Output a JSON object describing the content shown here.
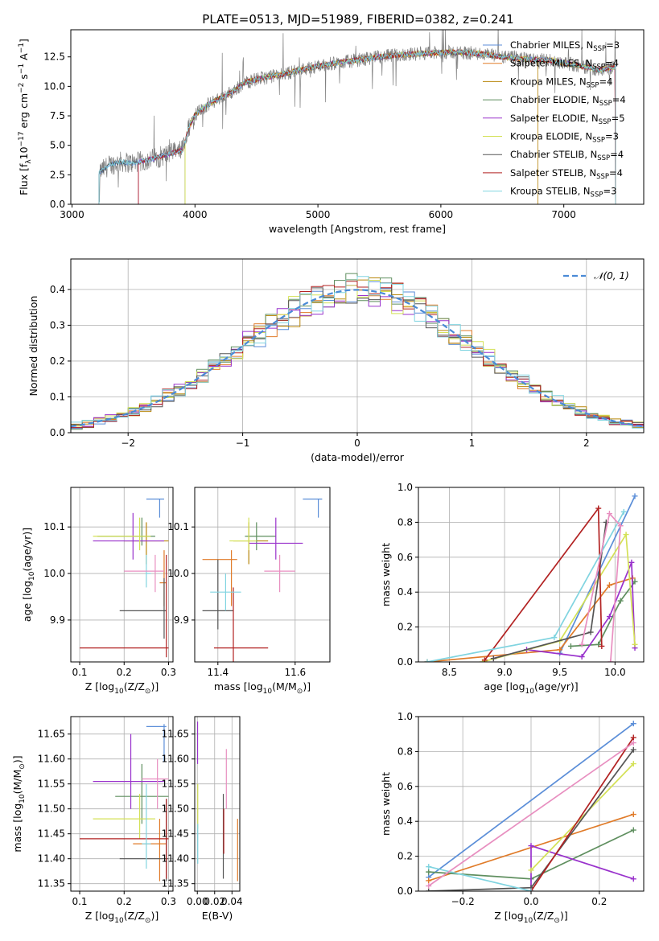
{
  "page_title": "PLATE=0513, MJD=51989, FIBERID=0382, z=0.241",
  "models": [
    {
      "name": "Chabrier MILES, N",
      "nssp": "=3",
      "color": "#5b8ed8"
    },
    {
      "name": "Salpeter MILES, N",
      "nssp": "=4",
      "color": "#e07b29"
    },
    {
      "name": "Kroupa MILES, N",
      "nssp": "=4",
      "color": "#b8860b"
    },
    {
      "name": "Chabrier ELODIE, N",
      "nssp": "=4",
      "color": "#5f8f5f"
    },
    {
      "name": "Salpeter ELODIE, N",
      "nssp": "=5",
      "color": "#9932cc"
    },
    {
      "name": "Kroupa ELODIE, N",
      "nssp": "=3",
      "color": "#d4e157"
    },
    {
      "name": "Chabrier STELIB, N",
      "nssp": "=4",
      "color": "#555555"
    },
    {
      "name": "Salpeter STELIB, N",
      "nssp": "=4",
      "color": "#b22222"
    },
    {
      "name": "Kroupa STELIB, N",
      "nssp": "=3",
      "color": "#80d4e0"
    }
  ],
  "chart_data": [
    {
      "id": "spectrum",
      "type": "line",
      "title": "PLATE=0513, MJD=51989, FIBERID=0382, z=0.241",
      "xlabel": "wavelength [Angstrom, rest frame]",
      "ylabel": "Flux [f",
      "ylabel_parts": [
        "Flux [f",
        "λ",
        "10",
        "−17",
        " erg cm",
        "−2",
        " s",
        "−1",
        " A",
        "−1",
        "]"
      ],
      "xlim": [
        2990,
        7650
      ],
      "ylim": [
        0,
        14.8
      ],
      "xticks": [
        3000,
        4000,
        5000,
        6000,
        7000
      ],
      "xtick_labels": [
        "3000",
        "4000",
        "5000",
        "6000",
        "7000"
      ],
      "yticks": [
        0.0,
        2.5,
        5.0,
        7.5,
        10.0,
        12.5
      ],
      "ytick_labels": [
        "0.0",
        "2.5",
        "5.0",
        "7.5",
        "10.0",
        "12.5"
      ],
      "legend": "upper-right",
      "nssp_subscript": "SSP",
      "continuum": {
        "x": [
          3220,
          3300,
          3400,
          3500,
          3600,
          3700,
          3800,
          3900,
          3950,
          4000,
          4100,
          4200,
          4300,
          4400,
          4500,
          4700,
          4900,
          5100,
          5300,
          5500,
          5700,
          5900,
          6100,
          6300,
          6500,
          6700,
          6900,
          7100,
          7300,
          7400
        ],
        "y": [
          2.7,
          3.3,
          3.6,
          3.5,
          3.7,
          4.0,
          4.3,
          4.6,
          6.5,
          7.6,
          8.4,
          9.0,
          9.5,
          10.3,
          10.6,
          11.0,
          11.5,
          11.9,
          12.2,
          12.5,
          12.7,
          12.8,
          12.9,
          12.8,
          12.5,
          12.3,
          12.2,
          11.8,
          11.4,
          11.6
        ]
      }
    },
    {
      "id": "residual-histogram",
      "type": "bar",
      "xlabel": "(data-model)/error",
      "ylabel": "Normed distribution",
      "xlim": [
        -2.5,
        2.5
      ],
      "ylim": [
        0,
        0.485
      ],
      "xticks": [
        -2,
        -1,
        0,
        1,
        2
      ],
      "xtick_labels": [
        "−2",
        "−1",
        "0",
        "1",
        "2"
      ],
      "yticks": [
        0.0,
        0.1,
        0.2,
        0.3,
        0.4
      ],
      "ytick_labels": [
        "0.0",
        "0.1",
        "0.2",
        "0.3",
        "0.4"
      ],
      "grid": true,
      "legend": "upper-right",
      "gaussian_label": "𝒩(0, 1)",
      "gaussian_color": "#4a8ad6",
      "bin_width": 0.1
    },
    {
      "id": "age-vs-z",
      "type": "scatter",
      "xlabel": "Z [log",
      "xlabel_parts": [
        "Z [log",
        "10",
        "(Z/Z",
        "⊙",
        ")]"
      ],
      "ylabel_parts": [
        "age  [log",
        "10",
        "(age/yr)]"
      ],
      "xlim": [
        0.08,
        0.31
      ],
      "ylim": [
        9.81,
        10.185
      ],
      "xticks": [
        0.1,
        0.2,
        0.3
      ],
      "xtick_labels": [
        "0.1",
        "0.2",
        "0.3"
      ],
      "yticks": [
        9.9,
        10.0,
        10.1
      ],
      "ytick_labels": [
        "9.9",
        "10.0",
        "10.1"
      ],
      "grid": true,
      "points": [
        {
          "x": 0.28,
          "y": 10.16,
          "xl": 0.25,
          "xh": 0.29,
          "yl": 10.12,
          "yh": 10.16,
          "c": 0
        },
        {
          "x": 0.29,
          "y": 9.98,
          "xl": 0.28,
          "xh": 0.295,
          "yl": 9.93,
          "yh": 10.05,
          "c": 1
        },
        {
          "x": 0.25,
          "y": 10.07,
          "xl": 0.2,
          "xh": 0.3,
          "yl": 10.02,
          "yh": 10.11,
          "c": 2
        },
        {
          "x": 0.24,
          "y": 10.08,
          "xl": 0.14,
          "xh": 0.27,
          "yl": 10.06,
          "yh": 10.12,
          "c": 3
        },
        {
          "x": 0.22,
          "y": 10.07,
          "xl": 0.13,
          "xh": 0.29,
          "yl": 10.03,
          "yh": 10.13,
          "c": 4
        },
        {
          "x": 0.235,
          "y": 10.08,
          "xl": 0.13,
          "xh": 0.26,
          "yl": 10.05,
          "yh": 10.12,
          "c": 5
        },
        {
          "x": 0.29,
          "y": 9.92,
          "xl": 0.19,
          "xh": 0.295,
          "yl": 9.86,
          "yh": 9.99,
          "c": 6
        },
        {
          "x": 0.295,
          "y": 9.84,
          "xl": 0.1,
          "xh": 0.3,
          "yl": 9.82,
          "yh": 10.04,
          "c": 7
        },
        {
          "x": 0.25,
          "y": 10.0,
          "xl": 0.25,
          "xh": 0.26,
          "yl": 9.97,
          "yh": 10.04,
          "c": 8
        },
        {
          "x": 0.27,
          "y": 10.005,
          "xl": 0.2,
          "xh": 0.29,
          "yl": 9.96,
          "yh": 10.04,
          "c": 9
        }
      ]
    },
    {
      "id": "age-vs-mass",
      "type": "scatter",
      "xlabel_parts": [
        "mass [log",
        "10",
        "(M/M",
        "⊙",
        ")]"
      ],
      "xlim": [
        11.34,
        11.69
      ],
      "ylim": [
        9.81,
        10.185
      ],
      "xticks": [
        11.4,
        11.6
      ],
      "xtick_labels": [
        "11.4",
        "11.6"
      ],
      "yticks": [
        9.9,
        10.0,
        10.1
      ],
      "ytick_labels": [
        "9.9",
        "10.0",
        "10.1"
      ],
      "grid": true,
      "points": [
        {
          "x": 11.66,
          "y": 10.16,
          "xl": 11.62,
          "xh": 11.67,
          "yl": 10.12,
          "yh": 10.16,
          "c": 0
        },
        {
          "x": 11.435,
          "y": 10.03,
          "xl": 11.36,
          "xh": 11.45,
          "yl": 9.93,
          "yh": 10.05,
          "c": 1
        },
        {
          "x": 11.48,
          "y": 10.07,
          "xl": 11.44,
          "xh": 11.53,
          "yl": 10.02,
          "yh": 10.11,
          "c": 2
        },
        {
          "x": 11.5,
          "y": 10.08,
          "xl": 11.47,
          "xh": 11.55,
          "yl": 10.05,
          "yh": 10.11,
          "c": 3
        },
        {
          "x": 11.55,
          "y": 10.065,
          "xl": 11.48,
          "xh": 11.62,
          "yl": 10.03,
          "yh": 10.12,
          "c": 4
        },
        {
          "x": 11.48,
          "y": 10.07,
          "xl": 11.43,
          "xh": 11.5,
          "yl": 10.05,
          "yh": 10.12,
          "c": 5
        },
        {
          "x": 11.4,
          "y": 9.92,
          "xl": 11.36,
          "xh": 11.44,
          "yl": 9.88,
          "yh": 10.03,
          "c": 6
        },
        {
          "x": 11.44,
          "y": 9.84,
          "xl": 11.39,
          "xh": 11.53,
          "yl": 9.81,
          "yh": 9.97,
          "c": 7
        },
        {
          "x": 11.42,
          "y": 9.96,
          "xl": 11.38,
          "xh": 11.46,
          "yl": 9.92,
          "yh": 10.0,
          "c": 8
        },
        {
          "x": 11.56,
          "y": 10.005,
          "xl": 11.52,
          "xh": 11.6,
          "yl": 9.96,
          "yh": 10.04,
          "c": 9
        }
      ]
    },
    {
      "id": "mass-weight-vs-age",
      "type": "line",
      "ylabel": "mass weight",
      "xlabel_parts": [
        "age  [log",
        "10",
        "(age/yr)]"
      ],
      "xlim": [
        8.22,
        10.26
      ],
      "ylim": [
        0,
        1.0
      ],
      "xticks": [
        8.5,
        9.0,
        9.5,
        10.0
      ],
      "xtick_labels": [
        "8.5",
        "9.0",
        "9.5",
        "10.0"
      ],
      "yticks": [
        0.0,
        0.2,
        0.4,
        0.6,
        0.8,
        1.0
      ],
      "ytick_labels": [
        "0.0",
        "0.2",
        "0.4",
        "0.6",
        "0.8",
        "1.0"
      ],
      "grid": true,
      "series": [
        {
          "c": 0,
          "x": [
            9.5,
            10.18
          ],
          "y": [
            0.05,
            0.95
          ]
        },
        {
          "c": 1,
          "x": [
            8.3,
            9.5,
            9.95,
            10.16
          ],
          "y": [
            0.0,
            0.07,
            0.44,
            0.48
          ]
        },
        {
          "c": 3,
          "x": [
            9.6,
            9.85,
            10.05,
            10.18
          ],
          "y": [
            0.09,
            0.1,
            0.35,
            0.46
          ]
        },
        {
          "c": 4,
          "x": [
            8.9,
            9.2,
            9.7,
            9.95,
            10.15,
            10.18
          ],
          "y": [
            0.02,
            0.07,
            0.03,
            0.26,
            0.57,
            0.08
          ]
        },
        {
          "c": 5,
          "x": [
            8.8,
            9.5,
            10.1,
            10.18
          ],
          "y": [
            0.0,
            0.12,
            0.73,
            0.1
          ]
        },
        {
          "c": 6,
          "x": [
            8.9,
            9.78,
            9.92
          ],
          "y": [
            0.02,
            0.17,
            0.8
          ]
        },
        {
          "c": 7,
          "x": [
            8.82,
            9.85,
            9.88
          ],
          "y": [
            0.01,
            0.88,
            0.09
          ]
        },
        {
          "c": 8,
          "x": [
            8.3,
            9.45,
            10.08
          ],
          "y": [
            0.0,
            0.14,
            0.86
          ]
        },
        {
          "c": 9,
          "x": [
            9.7,
            9.95,
            10.05,
            9.96
          ],
          "y": [
            0.1,
            0.85,
            0.78,
            0.0
          ]
        }
      ]
    },
    {
      "id": "mass-vs-z",
      "type": "scatter",
      "xlabel_parts": [
        "Z [log",
        "10",
        "(Z/Z",
        "⊙",
        ")]"
      ],
      "ylabel_parts": [
        "mass [log",
        "10",
        "(M/M",
        "⊙",
        ")]"
      ],
      "xlim": [
        0.08,
        0.31
      ],
      "ylim": [
        11.335,
        11.685
      ],
      "xticks": [
        0.1,
        0.2,
        0.3
      ],
      "xtick_labels": [
        "0.1",
        "0.2",
        "0.3"
      ],
      "yticks": [
        11.35,
        11.4,
        11.45,
        11.5,
        11.55,
        11.6,
        11.65
      ],
      "ytick_labels": [
        "11.35",
        "11.40",
        "11.45",
        "11.50",
        "11.55",
        "11.60",
        "11.65"
      ],
      "grid": true,
      "points": [
        {
          "x": 0.29,
          "y": 11.665,
          "xl": 0.25,
          "xh": 0.295,
          "yl": 11.595,
          "yh": 11.67,
          "c": 0
        },
        {
          "x": 0.28,
          "y": 11.43,
          "xl": 0.22,
          "xh": 0.295,
          "yl": 11.355,
          "yh": 11.48,
          "c": 1
        },
        {
          "x": 0.24,
          "y": 11.525,
          "xl": 0.18,
          "xh": 0.3,
          "yl": 11.47,
          "yh": 11.59,
          "c": 3
        },
        {
          "x": 0.215,
          "y": 11.555,
          "xl": 0.13,
          "xh": 0.29,
          "yl": 11.5,
          "yh": 11.65,
          "c": 4
        },
        {
          "x": 0.235,
          "y": 11.48,
          "xl": 0.13,
          "xh": 0.27,
          "yl": 11.44,
          "yh": 11.53,
          "c": 5
        },
        {
          "x": 0.295,
          "y": 11.4,
          "xl": 0.19,
          "xh": 0.3,
          "yl": 11.355,
          "yh": 11.52,
          "c": 6
        },
        {
          "x": 0.295,
          "y": 11.44,
          "xl": 0.1,
          "xh": 0.3,
          "yl": 11.36,
          "yh": 11.52,
          "c": 7
        },
        {
          "x": 0.25,
          "y": 11.43,
          "xl": 0.24,
          "xh": 0.26,
          "yl": 11.38,
          "yh": 11.55,
          "c": 8
        },
        {
          "x": 0.275,
          "y": 11.56,
          "xl": 0.24,
          "xh": 0.3,
          "yl": 11.5,
          "yh": 11.6,
          "c": 9
        }
      ]
    },
    {
      "id": "mass-vs-ebv",
      "type": "scatter",
      "xlabel": "E(B-V)",
      "xlim": [
        -0.003,
        0.049
      ],
      "ylim": [
        11.335,
        11.685
      ],
      "xticks": [
        0.0,
        0.02,
        0.04
      ],
      "xtick_labels": [
        "0.00",
        "0.02",
        "0.04"
      ],
      "yticks": [
        11.35,
        11.4,
        11.45,
        11.5,
        11.55,
        11.6,
        11.65
      ],
      "ytick_labels": [
        "11.35",
        "11.40",
        "11.45",
        "11.50",
        "11.55",
        "11.60",
        "11.65"
      ],
      "grid": true,
      "points": [
        {
          "x": 0.0003,
          "y": 11.62,
          "xl": 0.0003,
          "xh": 0.0003,
          "yl": 11.59,
          "yh": 11.675,
          "c": 4
        },
        {
          "x": 0.0005,
          "y": 11.5,
          "xl": 0.0005,
          "xh": 0.0005,
          "yl": 11.46,
          "yh": 11.55,
          "c": 5
        },
        {
          "x": 0.0005,
          "y": 11.44,
          "xl": 0.0005,
          "xh": 0.0005,
          "yl": 11.39,
          "yh": 11.47,
          "c": 8
        },
        {
          "x": 0.03,
          "y": 11.44,
          "xl": 0.03,
          "xh": 0.03,
          "yl": 11.36,
          "yh": 11.53,
          "c": 6
        },
        {
          "x": 0.0305,
          "y": 11.45,
          "xl": 0.0305,
          "xh": 0.0305,
          "yl": 11.41,
          "yh": 11.5,
          "c": 7
        },
        {
          "x": 0.0335,
          "y": 11.56,
          "xl": 0.0335,
          "xh": 0.0335,
          "yl": 11.5,
          "yh": 11.62,
          "c": 9
        },
        {
          "x": 0.0465,
          "y": 11.42,
          "xl": 0.0465,
          "xh": 0.0465,
          "yl": 11.355,
          "yh": 11.48,
          "c": 1
        }
      ]
    },
    {
      "id": "mass-weight-vs-z",
      "type": "line",
      "ylabel": "mass weight",
      "xlabel_parts": [
        "Z [log",
        "10",
        "(Z/Z",
        "⊙",
        ")]"
      ],
      "xlim": [
        -0.33,
        0.33
      ],
      "ylim": [
        0,
        1.0
      ],
      "xticks": [
        -0.2,
        0.0,
        0.2
      ],
      "xtick_labels": [
        "−0.2",
        "0.0",
        "0.2"
      ],
      "yticks": [
        0.0,
        0.2,
        0.4,
        0.6,
        0.8,
        1.0
      ],
      "ytick_labels": [
        "0.0",
        "0.2",
        "0.4",
        "0.6",
        "0.8",
        "1.0"
      ],
      "grid": true,
      "series": [
        {
          "c": 0,
          "x": [
            -0.3,
            0.3
          ],
          "y": [
            0.08,
            0.96
          ]
        },
        {
          "c": 1,
          "x": [
            -0.3,
            0.3
          ],
          "y": [
            0.06,
            0.44
          ]
        },
        {
          "c": 3,
          "x": [
            -0.3,
            0.0,
            0.3
          ],
          "y": [
            0.11,
            0.07,
            0.35
          ]
        },
        {
          "c": 4,
          "x": [
            0.0,
            0.0,
            0.3
          ],
          "y": [
            0.02,
            0.26,
            0.07
          ]
        },
        {
          "c": 5,
          "x": [
            0.0,
            0.3
          ],
          "y": [
            0.12,
            0.73
          ]
        },
        {
          "c": 6,
          "x": [
            -0.3,
            0.0,
            0.3
          ],
          "y": [
            0.0,
            0.02,
            0.81
          ]
        },
        {
          "c": 7,
          "x": [
            0.0,
            0.3
          ],
          "y": [
            0.0,
            0.88
          ]
        },
        {
          "c": 8,
          "x": [
            -0.3,
            0.0
          ],
          "y": [
            0.14,
            0.0
          ]
        },
        {
          "c": 9,
          "x": [
            -0.3,
            0.3
          ],
          "y": [
            0.03,
            0.85
          ]
        }
      ]
    }
  ]
}
